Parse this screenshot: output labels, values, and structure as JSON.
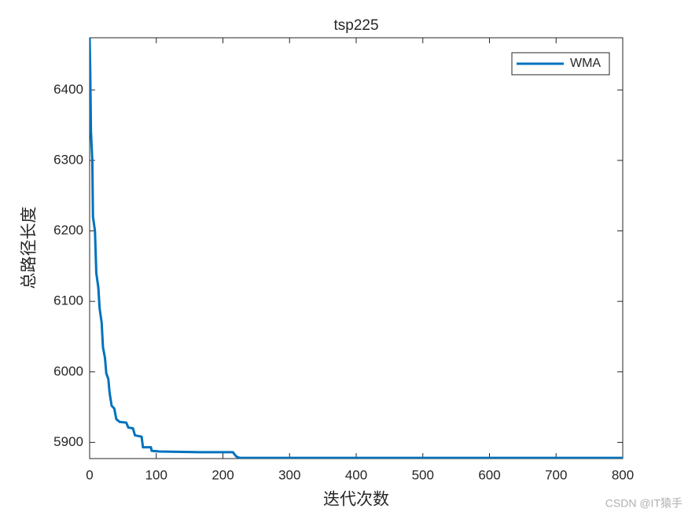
{
  "chart_data": {
    "type": "line",
    "title": "tsp225",
    "x_label": "迭代次数",
    "y_label": "总路径长度",
    "x": [
      0,
      1,
      2,
      4,
      5,
      8,
      10,
      13,
      15,
      18,
      20,
      23,
      25,
      28,
      30,
      33,
      37,
      40,
      45,
      55,
      58,
      65,
      68,
      78,
      80,
      92,
      93,
      105,
      165,
      215,
      220,
      225,
      800
    ],
    "series": [
      {
        "name": "WMA",
        "color": "#0072BD",
        "values": [
          6474,
          6420,
          6340,
          6300,
          6220,
          6200,
          6140,
          6120,
          6090,
          6070,
          6035,
          6020,
          5998,
          5990,
          5970,
          5952,
          5948,
          5933,
          5929,
          5928,
          5921,
          5920,
          5910,
          5908,
          5893,
          5893,
          5888,
          5887,
          5886,
          5886,
          5880,
          5878,
          5878
        ]
      }
    ],
    "xlim": [
      0,
      800
    ],
    "ylim": [
      5877,
      6474
    ],
    "xticks": [
      0,
      100,
      200,
      300,
      400,
      500,
      600,
      700,
      800
    ],
    "yticks": [
      5900,
      6000,
      6100,
      6200,
      6300,
      6400
    ],
    "legend": "upper right"
  },
  "watermark": "CSDN @IT猿手"
}
